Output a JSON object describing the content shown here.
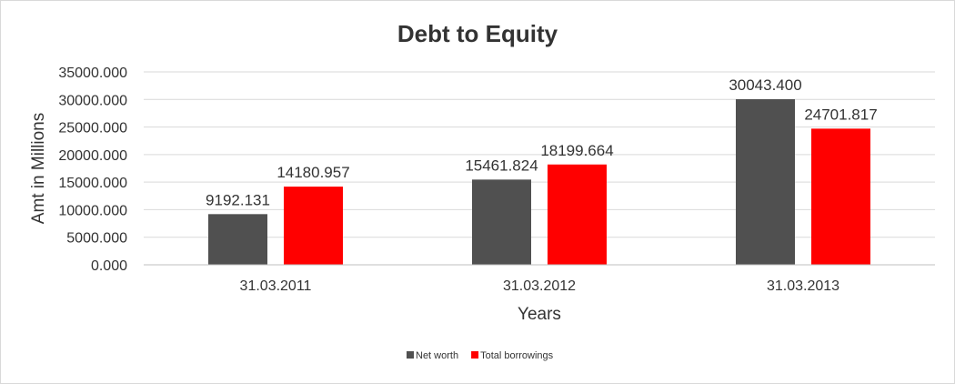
{
  "chart_data": {
    "type": "bar",
    "title": "Debt to Equity",
    "xlabel": "Years",
    "ylabel": "Amt in Millions",
    "categories": [
      "31.03.2011",
      "31.03.2012",
      "31.03.2013"
    ],
    "series": [
      {
        "name": "Net worth",
        "color": "#505050",
        "values": [
          9192.131,
          15461.824,
          30043.4
        ],
        "labels": [
          "9192.131",
          "15461.824",
          "30043.400"
        ]
      },
      {
        "name": "Total borrowings",
        "color": "#ff0000",
        "values": [
          14180.957,
          18199.664,
          24701.817
        ],
        "labels": [
          "14180.957",
          "18199.664",
          "24701.817"
        ]
      }
    ],
    "ylim": [
      0,
      35000
    ],
    "yticks": [
      "0.000",
      "5000.000",
      "10000.000",
      "15000.000",
      "20000.000",
      "25000.000",
      "30000.000",
      "35000.000"
    ],
    "grid": true,
    "legend_position": "bottom"
  }
}
